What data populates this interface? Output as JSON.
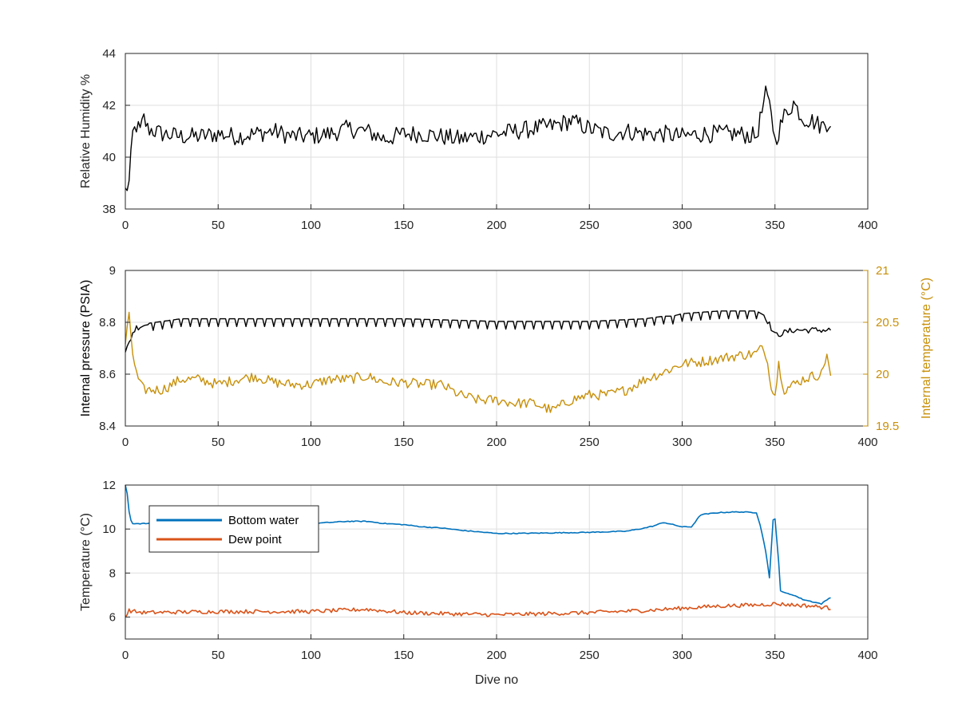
{
  "colors": {
    "black": "#000000",
    "gold": "#c8900a",
    "blue": "#0072bd",
    "orange": "#d95319",
    "axis": "#262626",
    "grid": "#dfdfdf"
  },
  "chart_data": [
    {
      "type": "line",
      "xlabel": "",
      "ylabel": "Relative Humidity %",
      "xlim": [
        0,
        400
      ],
      "ylim": [
        38,
        44
      ],
      "xticks": [
        "0",
        "50",
        "100",
        "150",
        "200",
        "250",
        "300",
        "350",
        "400"
      ],
      "yticks": [
        "38",
        "40",
        "42",
        "44"
      ],
      "grid": true,
      "series": [
        {
          "color": "#000000",
          "x": [
            0,
            2,
            4,
            6,
            8,
            10,
            12,
            20,
            30,
            40,
            50,
            60,
            70,
            80,
            90,
            100,
            110,
            120,
            130,
            140,
            150,
            160,
            170,
            180,
            190,
            200,
            210,
            220,
            230,
            240,
            250,
            260,
            270,
            280,
            290,
            300,
            310,
            320,
            330,
            340,
            345,
            348,
            350,
            355,
            360,
            365,
            370,
            375,
            380
          ],
          "values": [
            38.7,
            39.0,
            40.9,
            41.2,
            41.0,
            41.5,
            41.1,
            40.9,
            40.8,
            40.8,
            40.9,
            40.8,
            40.9,
            41.0,
            40.8,
            40.8,
            40.9,
            41.1,
            41.0,
            40.7,
            40.9,
            40.9,
            40.8,
            40.7,
            40.8,
            40.9,
            41.0,
            41.1,
            41.2,
            41.4,
            41.1,
            40.9,
            41.0,
            40.9,
            40.9,
            40.8,
            40.9,
            40.9,
            40.9,
            40.8,
            42.4,
            41.8,
            40.6,
            41.6,
            42.1,
            41.5,
            41.4,
            41.2,
            41.4
          ]
        }
      ]
    },
    {
      "type": "line",
      "xlabel": "",
      "ylabel": "Internal pressure (PSIA)",
      "ylabel_right": "Internal temperature (°C)",
      "xlim": [
        0,
        400
      ],
      "ylim": [
        8.4,
        9
      ],
      "ylim_right": [
        19.5,
        21
      ],
      "xticks": [
        "0",
        "50",
        "100",
        "150",
        "200",
        "250",
        "300",
        "350",
        "400"
      ],
      "yticks": [
        "8.4",
        "8.6",
        "8.8",
        "9"
      ],
      "yticks_right": [
        "19.5",
        "20",
        "20.5",
        "21"
      ],
      "grid": true,
      "series": [
        {
          "color": "#000000",
          "axis": "left",
          "x": [
            0,
            2,
            4,
            6,
            10,
            20,
            30,
            50,
            100,
            150,
            200,
            250,
            280,
            290,
            295,
            300,
            320,
            340,
            345,
            350,
            355,
            360,
            370,
            380
          ],
          "values": [
            8.68,
            8.72,
            8.76,
            8.78,
            8.79,
            8.8,
            8.81,
            8.81,
            8.81,
            8.81,
            8.8,
            8.8,
            8.81,
            8.82,
            8.82,
            8.83,
            8.84,
            8.84,
            8.82,
            8.75,
            8.76,
            8.77,
            8.77,
            8.77
          ]
        },
        {
          "color": "#c8900a",
          "axis": "right",
          "x": [
            0,
            2,
            4,
            6,
            8,
            10,
            15,
            20,
            30,
            40,
            50,
            60,
            70,
            80,
            90,
            100,
            110,
            120,
            130,
            140,
            150,
            160,
            170,
            180,
            190,
            200,
            210,
            220,
            230,
            240,
            250,
            260,
            270,
            280,
            290,
            300,
            310,
            320,
            330,
            340,
            342,
            345,
            348,
            350,
            352,
            355,
            360,
            365,
            370,
            375,
            378,
            380
          ],
          "values": [
            20.3,
            20.55,
            20.2,
            20.0,
            19.9,
            19.85,
            19.85,
            19.85,
            19.95,
            19.95,
            19.9,
            19.95,
            19.98,
            19.92,
            19.9,
            19.9,
            19.95,
            19.95,
            19.98,
            19.92,
            19.92,
            19.9,
            19.9,
            19.8,
            19.75,
            19.75,
            19.72,
            19.72,
            19.65,
            19.75,
            19.8,
            19.8,
            19.85,
            19.95,
            20.02,
            20.1,
            20.12,
            20.15,
            20.18,
            20.2,
            20.25,
            20.2,
            19.9,
            19.8,
            20.1,
            19.85,
            19.9,
            19.95,
            19.98,
            20.0,
            20.2,
            19.95
          ]
        }
      ]
    },
    {
      "type": "line",
      "xlabel": "Dive no",
      "ylabel": "Temperature (°C)",
      "xlim": [
        0,
        400
      ],
      "ylim": [
        5,
        12
      ],
      "xticks": [
        "0",
        "50",
        "100",
        "150",
        "200",
        "250",
        "300",
        "350",
        "400"
      ],
      "yticks": [
        "6",
        "8",
        "10",
        "12"
      ],
      "grid": true,
      "legend": "top-left",
      "series": [
        {
          "name": "Bottom water",
          "color": "#0072bd",
          "x": [
            0,
            1,
            2,
            3,
            4,
            5,
            10,
            50,
            100,
            110,
            120,
            130,
            140,
            150,
            160,
            170,
            180,
            200,
            210,
            250,
            270,
            280,
            285,
            290,
            295,
            300,
            305,
            310,
            320,
            330,
            340,
            342,
            345,
            347,
            349,
            350,
            352,
            353,
            355,
            360,
            365,
            370,
            375,
            380
          ],
          "values": [
            12.0,
            11.6,
            10.8,
            10.4,
            10.25,
            10.25,
            10.25,
            10.25,
            10.25,
            10.3,
            10.35,
            10.35,
            10.25,
            10.2,
            10.1,
            10.05,
            9.95,
            9.8,
            9.8,
            9.85,
            9.9,
            10.05,
            10.15,
            10.3,
            10.2,
            10.1,
            10.1,
            10.65,
            10.75,
            10.78,
            10.75,
            10.2,
            9.0,
            7.8,
            10.4,
            10.45,
            8.5,
            7.2,
            7.1,
            7.0,
            6.8,
            6.7,
            6.6,
            6.9
          ]
        },
        {
          "name": "Dew point",
          "color": "#d95319",
          "x": [
            0,
            2,
            5,
            10,
            50,
            100,
            130,
            150,
            200,
            250,
            280,
            300,
            320,
            340,
            350,
            360,
            370,
            380
          ],
          "values": [
            6.0,
            6.3,
            6.25,
            6.2,
            6.25,
            6.25,
            6.35,
            6.2,
            6.1,
            6.2,
            6.3,
            6.4,
            6.5,
            6.55,
            6.6,
            6.55,
            6.5,
            6.4
          ]
        }
      ]
    }
  ]
}
